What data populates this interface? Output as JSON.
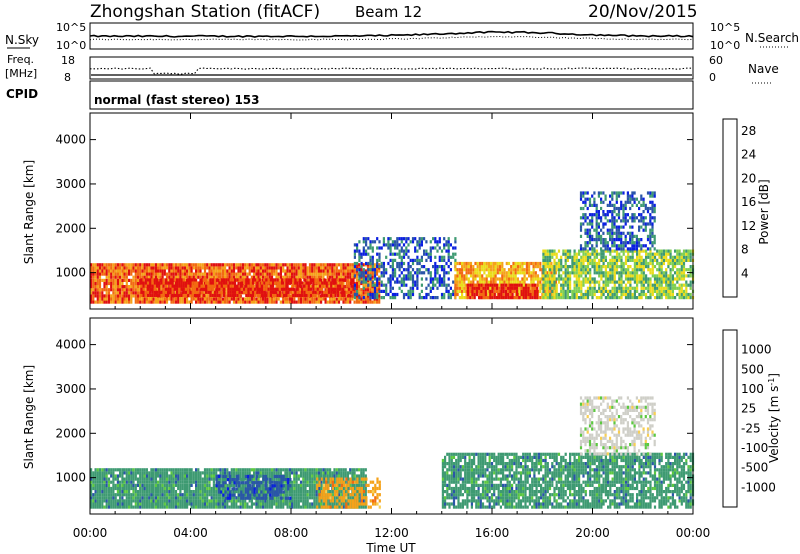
{
  "header": {
    "station": "Zhongshan Station (fitACF)",
    "beam": "Beam 12",
    "date": "20/Nov/2015"
  },
  "top_panels": {
    "nsky_label": "N.Sky",
    "nsky_ticks": [
      "10^5",
      "10^0"
    ],
    "nsearch_label": "N.Search",
    "nsearch_ticks": [
      "10^5",
      "10^0"
    ],
    "freq_label_1": "Freq.",
    "freq_label_2": "[MHz]",
    "freq_ticks": [
      "18",
      "8"
    ],
    "nave_label": "Nave",
    "nave_ticks": [
      "60",
      "0"
    ],
    "cpid_label": "CPID",
    "cpid_value": "normal (fast stereo) 153"
  },
  "colors": {
    "power": [
      "#0a1fe0",
      "#2a55a8",
      "#3e9a72",
      "#7fcf52",
      "#eadc1a",
      "#f5a21a",
      "#f26a12",
      "#e01010"
    ],
    "velocity": [
      "#e01010",
      "#f26a12",
      "#f5a21a",
      "#f7cf55",
      "#cfcfc8",
      "#5cc840",
      "#3e9a72",
      "#2a55a8",
      "#0a1fe0"
    ]
  },
  "chart_data": [
    {
      "type": "heatmap",
      "title": "Power",
      "ylabel": "Slant Range [km]",
      "xlabel": "Time UT",
      "xlim": [
        0,
        24
      ],
      "ylim": [
        180,
        4600
      ],
      "x_ticks": [
        "00:00",
        "04:00",
        "08:00",
        "12:00",
        "16:00",
        "20:00",
        "00:00"
      ],
      "y_ticks": [
        "1000",
        "2000",
        "3000",
        "4000"
      ],
      "colorbar": {
        "label": "Power [dB]",
        "ticks": [
          "4",
          "8",
          "12",
          "16",
          "20",
          "24",
          "28"
        ],
        "range": [
          0,
          30
        ]
      },
      "regions": [
        {
          "t": [
            0.0,
            11.5
          ],
          "r": [
            300,
            1200
          ],
          "level": 6,
          "density": 0.95
        },
        {
          "t": [
            2.0,
            10.5
          ],
          "r": [
            450,
            850
          ],
          "level": 7,
          "density": 0.85
        },
        {
          "t": [
            10.5,
            14.5
          ],
          "r": [
            400,
            1800
          ],
          "level": 1,
          "density": 0.5
        },
        {
          "t": [
            14.5,
            18.5
          ],
          "r": [
            400,
            1200
          ],
          "level": 5,
          "density": 0.8
        },
        {
          "t": [
            15.0,
            17.8
          ],
          "r": [
            400,
            700
          ],
          "level": 7,
          "density": 0.9
        },
        {
          "t": [
            18.0,
            24.0
          ],
          "r": [
            400,
            1500
          ],
          "level": 3,
          "density": 0.8
        },
        {
          "t": [
            19.5,
            22.5
          ],
          "r": [
            1500,
            2800
          ],
          "level": 1,
          "density": 0.55
        }
      ]
    },
    {
      "type": "heatmap",
      "title": "Velocity",
      "ylabel": "Slant Range [km]",
      "xlabel": "Time UT",
      "xlim": [
        0,
        24
      ],
      "ylim": [
        180,
        4600
      ],
      "x_ticks": [
        "00:00",
        "04:00",
        "08:00",
        "12:00",
        "16:00",
        "20:00",
        "00:00"
      ],
      "y_ticks": [
        "1000",
        "2000",
        "3000",
        "4000"
      ],
      "colorbar": {
        "label": "Velocity [m s^-1]",
        "ticks": [
          "1000",
          "500",
          "100",
          "25",
          "-25",
          "-100",
          "-500",
          "-1000"
        ],
        "range": [
          -1000,
          1000
        ]
      },
      "regions": [
        {
          "t": [
            0.0,
            11.0
          ],
          "r": [
            300,
            1200
          ],
          "class": 6,
          "density": 0.95
        },
        {
          "t": [
            5.0,
            8.0
          ],
          "r": [
            500,
            1000
          ],
          "class": 7,
          "density": 0.6
        },
        {
          "t": [
            9.0,
            11.5
          ],
          "r": [
            300,
            1000
          ],
          "class": 2,
          "density": 0.6
        },
        {
          "t": [
            14.0,
            24.0
          ],
          "r": [
            300,
            1500
          ],
          "class": 6,
          "density": 0.8
        },
        {
          "t": [
            19.5,
            22.5
          ],
          "r": [
            1500,
            2800
          ],
          "class": 4,
          "density": 0.55
        }
      ]
    }
  ]
}
